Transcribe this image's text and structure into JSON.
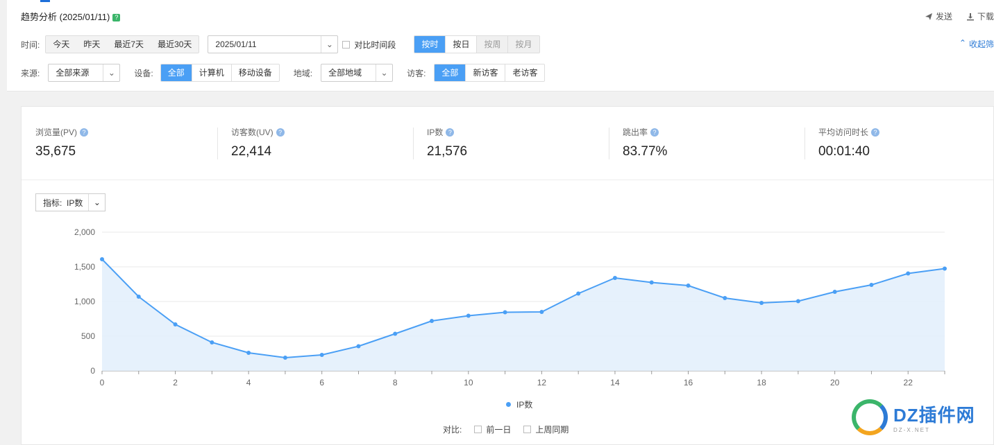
{
  "header": {
    "title": "趋势分析 (2025/01/11)",
    "title_help": "?",
    "send": "发送",
    "download": "下载",
    "collapse": "收起筛"
  },
  "filters": {
    "time_label": "时间:",
    "time_options": [
      "今天",
      "昨天",
      "最近7天",
      "最近30天"
    ],
    "date_value": "2025/01/11",
    "compare_period": "对比时间段",
    "granularity": [
      "按时",
      "按日",
      "按周",
      "按月"
    ],
    "source_label": "来源:",
    "source_value": "全部来源",
    "device_label": "设备:",
    "device_options": [
      "全部",
      "计算机",
      "移动设备"
    ],
    "region_label": "地域:",
    "region_value": "全部地域",
    "visitor_label": "访客:",
    "visitor_options": [
      "全部",
      "新访客",
      "老访客"
    ]
  },
  "kpis": [
    {
      "label": "浏览量(PV)",
      "value": "35,675"
    },
    {
      "label": "访客数(UV)",
      "value": "22,414"
    },
    {
      "label": "IP数",
      "value": "21,576"
    },
    {
      "label": "跳出率",
      "value": "83.77%"
    },
    {
      "label": "平均访问时长",
      "value": "00:01:40"
    }
  ],
  "indicator": {
    "label": "指标:",
    "value": "IP数"
  },
  "legend": {
    "series_name": "IP数"
  },
  "compare": {
    "label": "对比:",
    "prev_day": "前一日",
    "last_week": "上周同期"
  },
  "watermark": {
    "main": "DZ插件网",
    "sub": "DZ-X.NET"
  },
  "colors": {
    "accent": "#4a9ff5",
    "fill": "#e3effc"
  },
  "chart_data": {
    "type": "area",
    "x": [
      0,
      1,
      2,
      3,
      4,
      5,
      6,
      7,
      8,
      9,
      10,
      11,
      12,
      13,
      14,
      15,
      16,
      17,
      18,
      19,
      20,
      21,
      22,
      23
    ],
    "x_tick_labels": [
      "0",
      "2",
      "4",
      "6",
      "8",
      "10",
      "12",
      "14",
      "16",
      "18",
      "20",
      "22"
    ],
    "y_tick_labels": [
      "0",
      "500",
      "1,000",
      "1,500",
      "2,000"
    ],
    "ylim": [
      0,
      2000
    ],
    "xlim": [
      0,
      23
    ],
    "series": [
      {
        "name": "IP数",
        "values": [
          1610,
          1070,
          670,
          410,
          260,
          190,
          230,
          355,
          535,
          720,
          795,
          845,
          850,
          1115,
          1340,
          1275,
          1230,
          1050,
          980,
          1005,
          1140,
          1240,
          1405,
          1475
        ]
      }
    ],
    "grid": true
  }
}
